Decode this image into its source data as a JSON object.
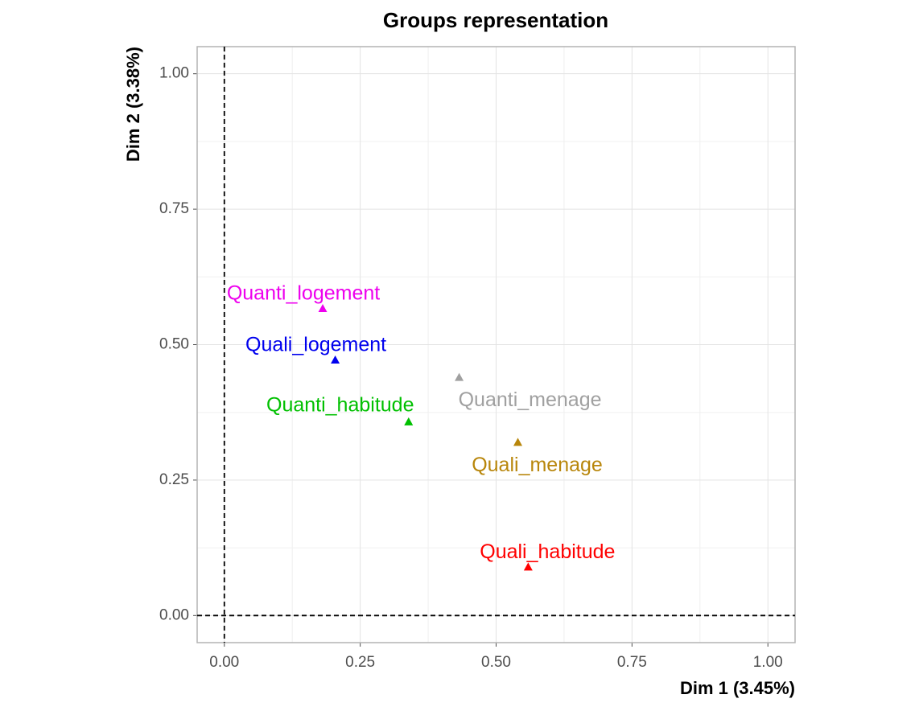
{
  "chart_data": {
    "type": "scatter",
    "title": "Groups representation",
    "x_label": "Dim 1 (3.45%)",
    "y_label": "Dim 2 (3.38%)",
    "xlim": [
      -0.05,
      1.05
    ],
    "ylim": [
      -0.05,
      1.05
    ],
    "xticks": [
      {
        "value": 0,
        "label": "0.00"
      },
      {
        "value": 0.25,
        "label": "0.25"
      },
      {
        "value": 0.5,
        "label": "0.50"
      },
      {
        "value": 0.75,
        "label": "0.75"
      },
      {
        "value": 1,
        "label": "1.00"
      }
    ],
    "yticks": [
      {
        "value": 0,
        "label": "0.00"
      },
      {
        "value": 0.25,
        "label": "0.25"
      },
      {
        "value": 0.5,
        "label": "0.50"
      },
      {
        "value": 0.75,
        "label": "0.75"
      },
      {
        "value": 1,
        "label": "1.00"
      }
    ],
    "grid": true,
    "hline": 0,
    "vline": 0,
    "series": [
      {
        "name": "Quanti_logement",
        "color": "#ee00ee",
        "x": [
          0.181
        ],
        "values": [
          0.566
        ]
      },
      {
        "name": "Quali_logement",
        "color": "#0000ee",
        "x": [
          0.204
        ],
        "values": [
          0.471
        ]
      },
      {
        "name": "Quanti_habitude",
        "color": "#00c000",
        "x": [
          0.339
        ],
        "values": [
          0.357
        ]
      },
      {
        "name": "Quanti_menage",
        "color": "#a0a0a0",
        "x": [
          0.432
        ],
        "values": [
          0.439
        ]
      },
      {
        "name": "Quali_menage",
        "color": "#b8860b",
        "x": [
          0.54
        ],
        "values": [
          0.319
        ]
      },
      {
        "name": "Quali_habitude",
        "color": "#ff0000",
        "x": [
          0.559
        ],
        "values": [
          0.089
        ]
      }
    ]
  }
}
